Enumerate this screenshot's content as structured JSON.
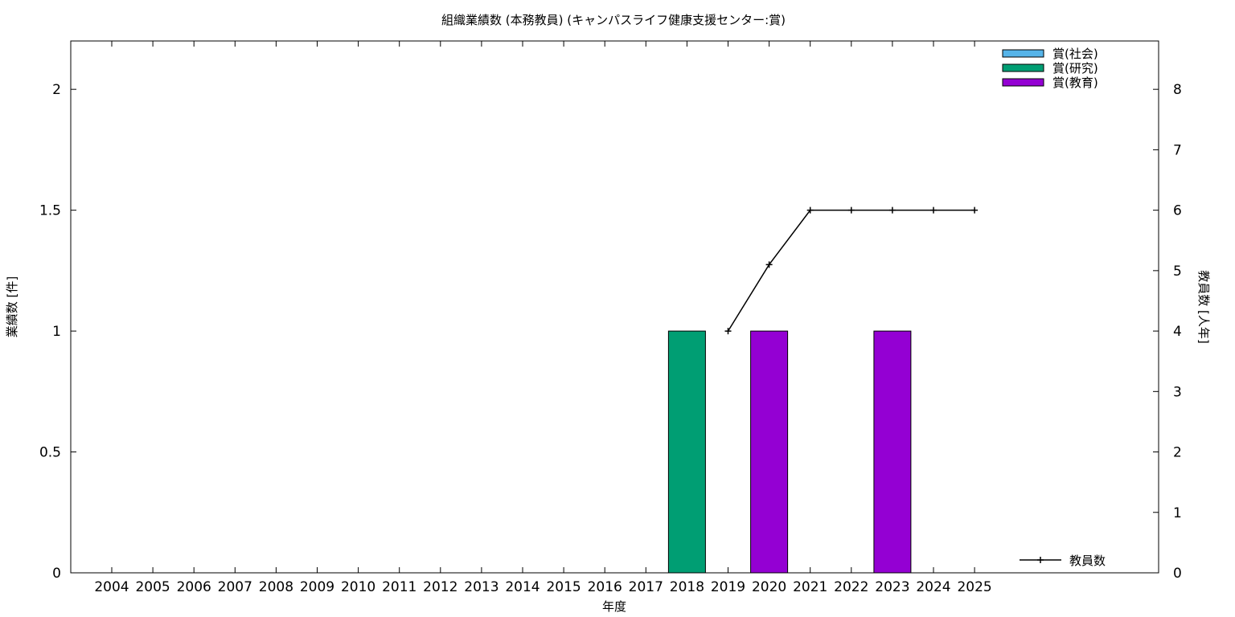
{
  "chart_data": {
    "type": "bar",
    "title": "組織業績数 (本務教員) (キャンパスライフ健康支援センター:賞)",
    "xlabel": "年度",
    "ylabel": "業績数 [件]",
    "y2label": "教員数 [人年]",
    "categories": [
      "2004",
      "2005",
      "2006",
      "2007",
      "2008",
      "2009",
      "2010",
      "2011",
      "2012",
      "2013",
      "2014",
      "2015",
      "2016",
      "2017",
      "2018",
      "2019",
      "2020",
      "2021",
      "2022",
      "2023",
      "2024",
      "2025"
    ],
    "ylim": [
      0,
      2.2
    ],
    "yticks": [
      "0",
      "0.5",
      "1",
      "1.5",
      "2"
    ],
    "y2lim": [
      0,
      8.8
    ],
    "y2ticks": [
      "0",
      "1",
      "2",
      "3",
      "4",
      "5",
      "6",
      "7",
      "8"
    ],
    "legend_position": "top-right",
    "series": [
      {
        "name": "賞(社会)",
        "color": "#56b4e9",
        "values": [
          0,
          0,
          0,
          0,
          0,
          0,
          0,
          0,
          0,
          0,
          0,
          0,
          0,
          0,
          0,
          0,
          0,
          0,
          0,
          0,
          0,
          0
        ]
      },
      {
        "name": "賞(研究)",
        "color": "#009e73",
        "values": [
          0,
          0,
          0,
          0,
          0,
          0,
          0,
          0,
          0,
          0,
          0,
          0,
          0,
          0,
          1,
          0,
          0,
          0,
          0,
          0,
          0,
          0
        ]
      },
      {
        "name": "賞(教育)",
        "color": "#9400d3",
        "values": [
          0,
          0,
          0,
          0,
          0,
          0,
          0,
          0,
          0,
          0,
          0,
          0,
          0,
          0,
          0,
          0,
          1,
          0,
          0,
          1,
          0,
          0
        ]
      }
    ],
    "line_series": {
      "name": "教員数",
      "color": "#000000",
      "x": [
        "2019",
        "2020",
        "2021",
        "2022",
        "2023",
        "2024",
        "2025"
      ],
      "values": [
        4,
        5.1,
        6,
        6,
        6,
        6,
        6
      ]
    }
  }
}
